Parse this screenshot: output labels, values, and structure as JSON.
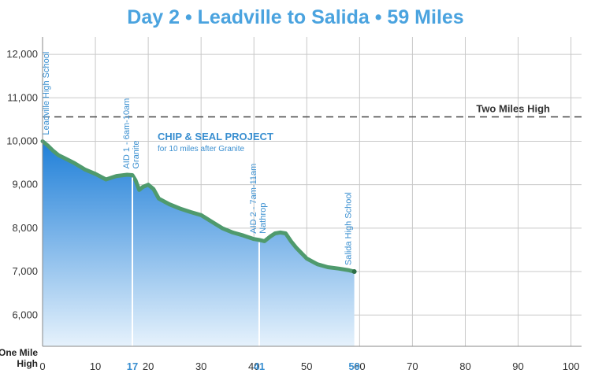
{
  "chart_data": {
    "type": "area",
    "title": "Day 2 • Leadville to Salida • 59 Miles",
    "xlabel": "",
    "ylabel": "",
    "xlim": [
      0,
      102
    ],
    "ylim": [
      5280,
      12400
    ],
    "grid": true,
    "x_ticks": [
      0,
      10,
      20,
      30,
      40,
      50,
      60,
      70,
      80,
      90,
      100
    ],
    "x_highlight_ticks": [
      17,
      41,
      59
    ],
    "y_ticks": [
      {
        "value": 6000,
        "label": "6,000"
      },
      {
        "value": 7000,
        "label": "7,000"
      },
      {
        "value": 8000,
        "label": "8,000"
      },
      {
        "value": 9000,
        "label": "9,000"
      },
      {
        "value": 10000,
        "label": "10,000"
      },
      {
        "value": 11000,
        "label": "11,000"
      },
      {
        "value": 12000,
        "label": "12,000"
      }
    ],
    "y_base_label": [
      "One Mile",
      "High"
    ],
    "series": [
      {
        "x": [
          0,
          1,
          2,
          3,
          4,
          6,
          8,
          10,
          12,
          14,
          16,
          17,
          17.6,
          18.3,
          19,
          20,
          21,
          22,
          24,
          26,
          28,
          30,
          32,
          34,
          36,
          38,
          40,
          41,
          42,
          43,
          44,
          45,
          46,
          47,
          48,
          50,
          52,
          54,
          56,
          58,
          59
        ],
        "y": [
          10000,
          9900,
          9780,
          9680,
          9620,
          9500,
          9350,
          9250,
          9120,
          9200,
          9230,
          9220,
          9100,
          8880,
          8950,
          9000,
          8900,
          8680,
          8550,
          8450,
          8370,
          8300,
          8150,
          8000,
          7900,
          7830,
          7750,
          7730,
          7700,
          7800,
          7880,
          7900,
          7880,
          7700,
          7550,
          7300,
          7170,
          7100,
          7070,
          7030,
          7000
        ]
      }
    ],
    "reference_line": {
      "value": 10560,
      "label": "Two Miles High"
    },
    "stops": [
      {
        "x": 0,
        "lines": [
          "Leadville High School"
        ]
      },
      {
        "x": 17,
        "lines": [
          "AID 1 - 6am-10am",
          "Granite"
        ]
      },
      {
        "x": 41,
        "lines": [
          "AID 2 - 7am-11am",
          "Nathrop"
        ]
      },
      {
        "x": 59,
        "lines": [
          "Salida High School"
        ]
      }
    ],
    "annotation": {
      "title": "CHIP & SEAL PROJECT",
      "subtitle": "for 10 miles after Granite"
    },
    "colors": {
      "title": "#4aa3df",
      "line": "#4f9a6d",
      "fill_top": "#1f7fd8",
      "fill_bottom": "#e6f2fc",
      "grid": "#c8c8c8",
      "annotation": "#3a8fd0"
    }
  }
}
